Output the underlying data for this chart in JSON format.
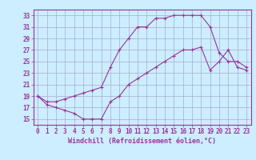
{
  "xlabel": "Windchill (Refroidissement éolien,°C)",
  "bg_color": "#cceeff",
  "grid_color": "#aaaacc",
  "line_color": "#993399",
  "border_color": "#993399",
  "xlim": [
    -0.5,
    23.5
  ],
  "ylim": [
    14,
    34
  ],
  "xticks": [
    0,
    1,
    2,
    3,
    4,
    5,
    6,
    7,
    8,
    9,
    10,
    11,
    12,
    13,
    14,
    15,
    16,
    17,
    18,
    19,
    20,
    21,
    22,
    23
  ],
  "yticks": [
    15,
    17,
    19,
    21,
    23,
    25,
    27,
    29,
    31,
    33
  ],
  "line1_x": [
    0,
    1,
    2,
    3,
    4,
    5,
    6,
    7,
    8,
    9,
    10,
    11,
    12,
    13,
    14,
    15,
    16,
    17,
    18,
    19,
    20,
    21,
    22,
    23
  ],
  "line1_y": [
    19,
    17.5,
    17,
    16.5,
    16,
    15,
    15,
    15,
    18,
    19,
    21,
    22,
    23,
    24,
    25,
    26,
    27,
    27,
    27.5,
    23.5,
    25,
    27,
    24,
    23.5
  ],
  "line2_x": [
    0,
    1,
    2,
    3,
    4,
    5,
    6,
    7,
    8,
    9,
    10,
    11,
    12,
    13,
    14,
    15,
    16,
    17,
    18,
    19,
    20,
    21,
    22,
    23
  ],
  "line2_y": [
    19,
    18,
    18,
    18.5,
    19,
    19.5,
    20,
    20.5,
    24,
    27,
    29,
    31,
    31,
    32.5,
    32.5,
    33,
    33,
    33,
    33,
    31,
    26.5,
    25,
    25,
    24
  ],
  "tick_fontsize": 5.5,
  "xlabel_fontsize": 6
}
